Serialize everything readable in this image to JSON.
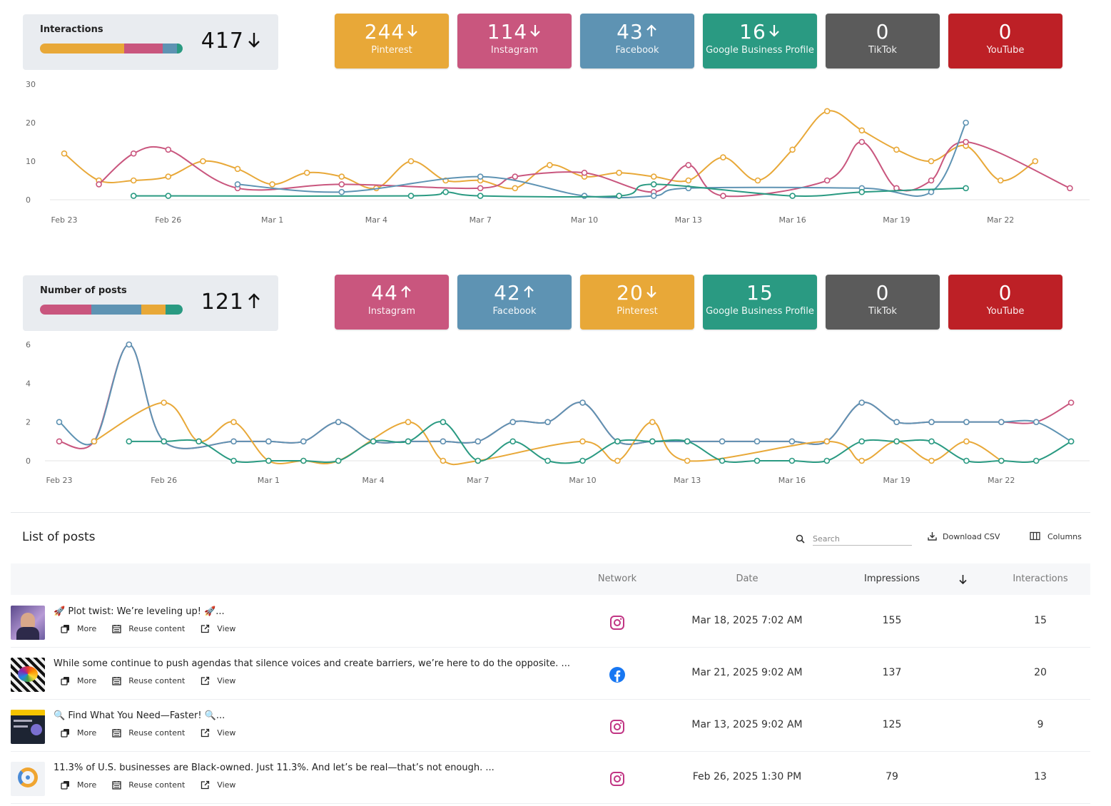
{
  "interactions": {
    "label": "Interactions",
    "total": "417",
    "trend": "down",
    "bar": [
      {
        "color": "#e8a838",
        "frac": 0.59
      },
      {
        "color": "#c9567e",
        "frac": 0.27
      },
      {
        "color": "#5e93b3",
        "frac": 0.1
      },
      {
        "color": "#2a9a82",
        "frac": 0.04
      }
    ],
    "tiles": [
      {
        "value": "244",
        "trend": "down",
        "name": "Pinterest",
        "color": "#e8a838"
      },
      {
        "value": "114",
        "trend": "down",
        "name": "Instagram",
        "color": "#c9567e"
      },
      {
        "value": "43",
        "trend": "up",
        "name": "Facebook",
        "color": "#5e93b3"
      },
      {
        "value": "16",
        "trend": "down",
        "name": "Google Business Profile",
        "color": "#2a9a82"
      },
      {
        "value": "0",
        "trend": "none",
        "name": "TikTok",
        "color": "#5b5b5b"
      },
      {
        "value": "0",
        "trend": "none",
        "name": "YouTube",
        "color": "#bd2026"
      }
    ]
  },
  "posts_summary": {
    "label": "Number of posts",
    "total": "121",
    "trend": "up",
    "bar": [
      {
        "color": "#c9567e",
        "frac": 0.36
      },
      {
        "color": "#5e93b3",
        "frac": 0.35
      },
      {
        "color": "#e8a838",
        "frac": 0.17
      },
      {
        "color": "#2a9a82",
        "frac": 0.12
      }
    ],
    "tiles": [
      {
        "value": "44",
        "trend": "up",
        "name": "Instagram",
        "color": "#c9567e"
      },
      {
        "value": "42",
        "trend": "up",
        "name": "Facebook",
        "color": "#5e93b3"
      },
      {
        "value": "20",
        "trend": "down",
        "name": "Pinterest",
        "color": "#e8a838"
      },
      {
        "value": "15",
        "trend": "none",
        "name": "Google Business Profile",
        "color": "#2a9a82"
      },
      {
        "value": "0",
        "trend": "none",
        "name": "TikTok",
        "color": "#5b5b5b"
      },
      {
        "value": "0",
        "trend": "none",
        "name": "YouTube",
        "color": "#bd2026"
      }
    ]
  },
  "chart_data": [
    {
      "type": "line",
      "title": "",
      "ylim": [
        0,
        30
      ],
      "yticks": [
        0,
        10,
        20,
        30
      ],
      "x_start": "Feb 23",
      "xticks": [
        {
          "i": 0,
          "label": "Feb 23"
        },
        {
          "i": 3,
          "label": "Feb 26"
        },
        {
          "i": 6,
          "label": "Mar 1"
        },
        {
          "i": 9,
          "label": "Mar 4"
        },
        {
          "i": 12,
          "label": "Mar 7"
        },
        {
          "i": 15,
          "label": "Mar 10"
        },
        {
          "i": 18,
          "label": "Mar 13"
        },
        {
          "i": 21,
          "label": "Mar 16"
        },
        {
          "i": 24,
          "label": "Mar 19"
        },
        {
          "i": 27,
          "label": "Mar 22"
        }
      ],
      "series": [
        {
          "color": "#e8a838",
          "points": [
            [
              0,
              12
            ],
            [
              1,
              5
            ],
            [
              2,
              5
            ],
            [
              3,
              6
            ],
            [
              4,
              10
            ],
            [
              5,
              8
            ],
            [
              6,
              4
            ],
            [
              7,
              7
            ],
            [
              8,
              6
            ],
            [
              9,
              3
            ],
            [
              10,
              10
            ],
            [
              11,
              5
            ],
            [
              12,
              5
            ],
            [
              13,
              3
            ],
            [
              14,
              9
            ],
            [
              15,
              6
            ],
            [
              16,
              7
            ],
            [
              17,
              6
            ],
            [
              18,
              5
            ],
            [
              19,
              11
            ],
            [
              20,
              5
            ],
            [
              21,
              13
            ],
            [
              22,
              23
            ],
            [
              23,
              18
            ],
            [
              24,
              13
            ],
            [
              25,
              10
            ],
            [
              26,
              14
            ],
            [
              27,
              5
            ],
            [
              28,
              10
            ]
          ]
        },
        {
          "color": "#c9567e",
          "points": [
            [
              1,
              4
            ],
            [
              2,
              12
            ],
            [
              3,
              13
            ],
            [
              5,
              3
            ],
            [
              8,
              4
            ],
            [
              12,
              3
            ],
            [
              13,
              6
            ],
            [
              15,
              7
            ],
            [
              17,
              2
            ],
            [
              18,
              9
            ],
            [
              19,
              1
            ],
            [
              22,
              5
            ],
            [
              23,
              15
            ],
            [
              24,
              3
            ],
            [
              25,
              5
            ],
            [
              26,
              15
            ],
            [
              29,
              3
            ]
          ]
        },
        {
          "color": "#5e93b3",
          "points": [
            [
              5,
              4
            ],
            [
              8,
              2
            ],
            [
              12,
              6
            ],
            [
              15,
              1
            ],
            [
              17,
              1
            ],
            [
              18,
              3
            ],
            [
              23,
              3
            ],
            [
              25,
              2
            ],
            [
              26,
              20
            ]
          ]
        },
        {
          "color": "#2a9a82",
          "points": [
            [
              2,
              1
            ],
            [
              3,
              1
            ],
            [
              10,
              1
            ],
            [
              11,
              2
            ],
            [
              12,
              1
            ],
            [
              16,
              1
            ],
            [
              17,
              4
            ],
            [
              21,
              1
            ],
            [
              23,
              2
            ],
            [
              26,
              3
            ]
          ]
        }
      ]
    },
    {
      "type": "line",
      "title": "",
      "ylim": [
        0,
        6
      ],
      "yticks": [
        0,
        2,
        4,
        6
      ],
      "x_start": "Feb 23",
      "xticks": [
        {
          "i": 0,
          "label": "Feb 23"
        },
        {
          "i": 3,
          "label": "Feb 26"
        },
        {
          "i": 6,
          "label": "Mar 1"
        },
        {
          "i": 9,
          "label": "Mar 4"
        },
        {
          "i": 12,
          "label": "Mar 7"
        },
        {
          "i": 15,
          "label": "Mar 10"
        },
        {
          "i": 18,
          "label": "Mar 13"
        },
        {
          "i": 21,
          "label": "Mar 16"
        },
        {
          "i": 24,
          "label": "Mar 19"
        },
        {
          "i": 27,
          "label": "Mar 22"
        }
      ],
      "series": [
        {
          "color": "#c9567e",
          "points": [
            [
              0,
              1
            ],
            [
              1,
              1
            ],
            [
              2,
              6
            ],
            [
              3,
              1
            ],
            [
              5,
              1
            ],
            [
              6,
              1
            ],
            [
              7,
              1
            ],
            [
              8,
              2
            ],
            [
              9,
              1
            ],
            [
              10,
              1
            ],
            [
              11,
              1
            ],
            [
              12,
              1
            ],
            [
              13,
              2
            ],
            [
              14,
              2
            ],
            [
              15,
              3
            ],
            [
              16,
              1
            ],
            [
              17,
              1
            ],
            [
              18,
              1
            ],
            [
              19,
              1
            ],
            [
              20,
              1
            ],
            [
              21,
              1
            ],
            [
              22,
              1
            ],
            [
              23,
              3
            ],
            [
              24,
              2
            ],
            [
              25,
              2
            ],
            [
              26,
              2
            ],
            [
              27,
              2
            ],
            [
              28,
              2
            ],
            [
              29,
              3
            ]
          ]
        },
        {
          "color": "#5e93b3",
          "points": [
            [
              0,
              2
            ],
            [
              1,
              1
            ],
            [
              2,
              6
            ],
            [
              3,
              1
            ],
            [
              5,
              1
            ],
            [
              6,
              1
            ],
            [
              7,
              1
            ],
            [
              8,
              2
            ],
            [
              9,
              1
            ],
            [
              10,
              1
            ],
            [
              11,
              1
            ],
            [
              12,
              1
            ],
            [
              13,
              2
            ],
            [
              14,
              2
            ],
            [
              15,
              3
            ],
            [
              16,
              1
            ],
            [
              17,
              1
            ],
            [
              18,
              1
            ],
            [
              19,
              1
            ],
            [
              20,
              1
            ],
            [
              21,
              1
            ],
            [
              22,
              1
            ],
            [
              23,
              3
            ],
            [
              24,
              2
            ],
            [
              25,
              2
            ],
            [
              26,
              2
            ],
            [
              27,
              2
            ],
            [
              28,
              2
            ],
            [
              29,
              1
            ]
          ]
        },
        {
          "color": "#e8a838",
          "points": [
            [
              1,
              1
            ],
            [
              3,
              3
            ],
            [
              4,
              1
            ],
            [
              5,
              2
            ],
            [
              6,
              0
            ],
            [
              7,
              0
            ],
            [
              8,
              0
            ],
            [
              10,
              2
            ],
            [
              11,
              0
            ],
            [
              12,
              0
            ],
            [
              15,
              1
            ],
            [
              16,
              0
            ],
            [
              17,
              2
            ],
            [
              18,
              0
            ],
            [
              22,
              1
            ],
            [
              23,
              0
            ],
            [
              24,
              1
            ],
            [
              25,
              0
            ],
            [
              26,
              1
            ],
            [
              27,
              0
            ]
          ]
        },
        {
          "color": "#2a9a82",
          "points": [
            [
              2,
              1
            ],
            [
              3,
              1
            ],
            [
              4,
              1
            ],
            [
              5,
              0
            ],
            [
              6,
              0
            ],
            [
              7,
              0
            ],
            [
              8,
              0
            ],
            [
              9,
              1
            ],
            [
              10,
              1
            ],
            [
              11,
              2
            ],
            [
              12,
              0
            ],
            [
              13,
              1
            ],
            [
              14,
              0
            ],
            [
              15,
              0
            ],
            [
              16,
              1
            ],
            [
              17,
              1
            ],
            [
              18,
              1
            ],
            [
              19,
              0
            ],
            [
              20,
              0
            ],
            [
              21,
              0
            ],
            [
              22,
              0
            ],
            [
              23,
              1
            ],
            [
              24,
              1
            ],
            [
              25,
              1
            ],
            [
              26,
              0
            ],
            [
              27,
              0
            ],
            [
              28,
              0
            ],
            [
              29,
              1
            ]
          ]
        }
      ]
    }
  ],
  "list": {
    "title": "List of posts",
    "search_placeholder": "Search",
    "download_label": "Download CSV",
    "columns_label": "Columns",
    "headers": {
      "network": "Network",
      "date": "Date",
      "impressions": "Impressions",
      "interactions": "Interactions"
    },
    "actions": {
      "more": "More",
      "reuse": "Reuse content",
      "view": "View"
    },
    "rows": [
      {
        "text": "🚀 Plot twist: We’re leveling up! 🚀...",
        "network": "instagram",
        "date": "Mar 18, 2025 7:02 AM",
        "impressions": "155",
        "interactions": "15"
      },
      {
        "text": "While some continue to push agendas that silence voices and create barriers, we’re here to do the opposite. ...",
        "network": "facebook",
        "date": "Mar 21, 2025 9:02 AM",
        "impressions": "137",
        "interactions": "20"
      },
      {
        "text": "🔍 Find What You Need—Faster! 🔍...",
        "network": "instagram",
        "date": "Mar 13, 2025 9:02 AM",
        "impressions": "125",
        "interactions": "9"
      },
      {
        "text": "11.3% of U.S. businesses are Black-owned. Just 11.3%. And let’s be real—that’s not enough. ...",
        "network": "instagram",
        "date": "Feb 26, 2025 1:30 PM",
        "impressions": "79",
        "interactions": "13"
      }
    ]
  }
}
